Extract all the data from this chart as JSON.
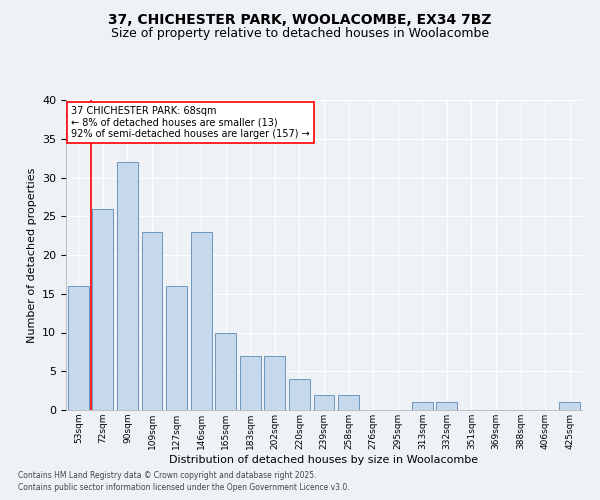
{
  "title": "37, CHICHESTER PARK, WOOLACOMBE, EX34 7BZ",
  "subtitle": "Size of property relative to detached houses in Woolacombe",
  "xlabel": "Distribution of detached houses by size in Woolacombe",
  "ylabel": "Number of detached properties",
  "categories": [
    "53sqm",
    "72sqm",
    "90sqm",
    "109sqm",
    "127sqm",
    "146sqm",
    "165sqm",
    "183sqm",
    "202sqm",
    "220sqm",
    "239sqm",
    "258sqm",
    "276sqm",
    "295sqm",
    "313sqm",
    "332sqm",
    "351sqm",
    "369sqm",
    "388sqm",
    "406sqm",
    "425sqm"
  ],
  "values": [
    16,
    26,
    32,
    23,
    16,
    23,
    10,
    7,
    7,
    4,
    2,
    2,
    0,
    0,
    1,
    1,
    0,
    0,
    0,
    0,
    1
  ],
  "bar_color": "#c5d8ec",
  "bar_edge_color": "#5a8ab5",
  "ylim": [
    0,
    40
  ],
  "yticks": [
    0,
    5,
    10,
    15,
    20,
    25,
    30,
    35,
    40
  ],
  "annotation_text": "37 CHICHESTER PARK: 68sqm\n← 8% of detached houses are smaller (13)\n92% of semi-detached houses are larger (157) →",
  "red_line_x": 0.5,
  "footer1": "Contains HM Land Registry data © Crown copyright and database right 2025.",
  "footer2": "Contains public sector information licensed under the Open Government Licence v3.0.",
  "bg_color": "#eef2f7",
  "grid_color": "#ffffff",
  "title_fontsize": 10,
  "subtitle_fontsize": 9,
  "ann_fontsize": 7,
  "xlabel_fontsize": 8,
  "ylabel_fontsize": 8,
  "xtick_fontsize": 6.5,
  "ytick_fontsize": 8,
  "footer_fontsize": 5.5
}
